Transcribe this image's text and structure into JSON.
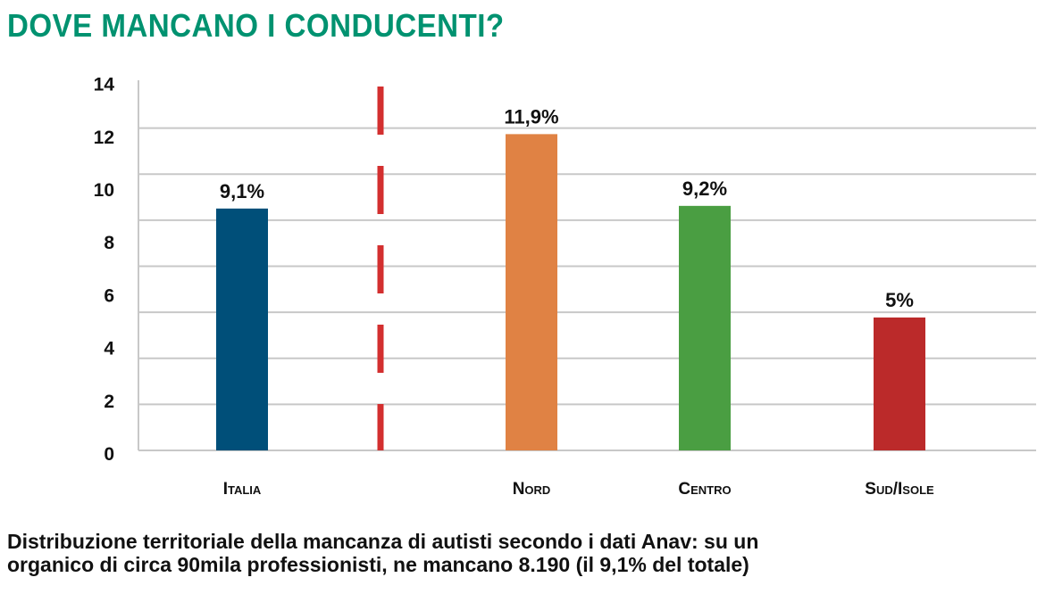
{
  "title": "DOVE MANCANO I CONDUCENTI?",
  "caption_line1": "Distribuzione territoriale della mancanza di autisti secondo i dati Anav: su un",
  "caption_line2": "organico di circa 90mila professionisti, ne mancano 8.190 (il 9,1% del totale)",
  "chart_data": {
    "type": "bar",
    "categories": [
      "Italia",
      "Nord",
      "Centro",
      "Sud/Isole"
    ],
    "values": [
      9.1,
      11.9,
      9.2,
      5
    ],
    "value_labels": [
      "9,1%",
      "11,9%",
      "9,2%",
      "5%"
    ],
    "colors": [
      "#004f79",
      "#e08244",
      "#4a9e42",
      "#bb2a2a"
    ],
    "yticks": [
      0,
      2,
      4,
      6,
      8,
      10,
      12,
      14
    ],
    "ylim": [
      0,
      14
    ],
    "grid": true,
    "separator_color": "#d32f2f",
    "xlabel": "",
    "ylabel": ""
  }
}
